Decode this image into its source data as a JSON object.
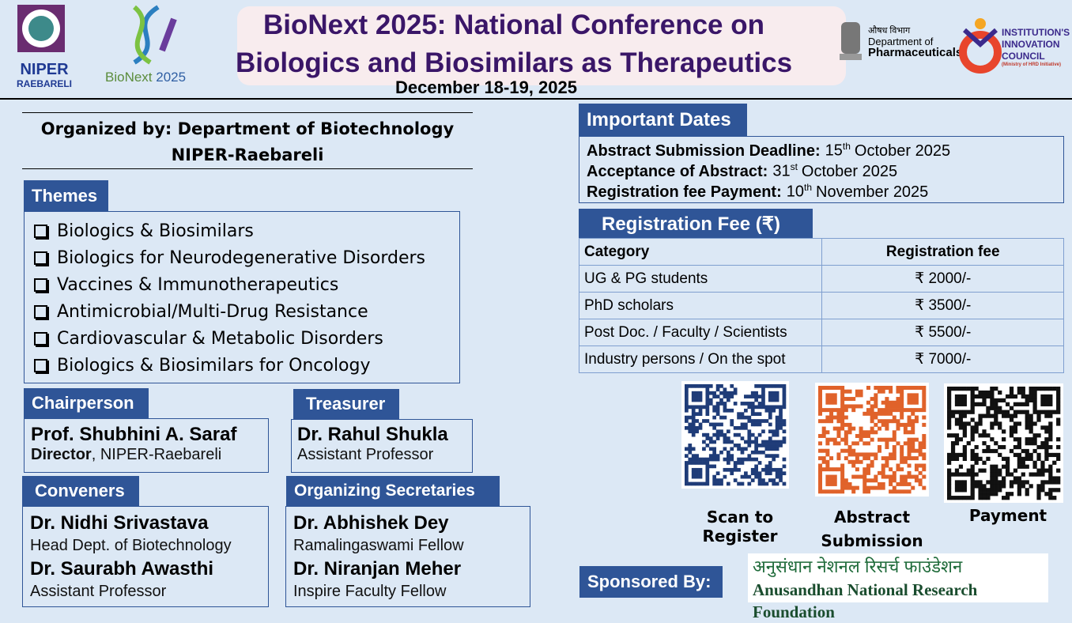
{
  "header": {
    "logos": {
      "niper": [
        "NIPER",
        "RAEBARELI"
      ],
      "bionext": [
        "BioNext",
        "2025"
      ],
      "dop": {
        "hindi": "औषध विभाग",
        "lines": [
          "Department of",
          "Pharmaceuticals"
        ]
      },
      "iic": {
        "lines": [
          "INSTITUTION'S",
          "INNOVATION",
          "COUNCIL"
        ],
        "note": "(Ministry of HRD Initiative)"
      }
    },
    "title": [
      "BioNext 2025: National Conference on",
      "Biologics and Biosimilars as Therapeutics"
    ],
    "date": "December 18-19, 2025"
  },
  "organizer": [
    "Organized by: Department of Biotechnology",
    "NIPER-Raebareli"
  ],
  "themes": {
    "heading": "Themes",
    "items": [
      "Biologics & Biosimilars",
      "Biologics for Neurodegenerative Disorders",
      "Vaccines & Immunotherapeutics",
      "Antimicrobial/Multi-Drug Resistance",
      "Cardiovascular & Metabolic Disorders",
      "Biologics & Biosimilars for Oncology"
    ]
  },
  "chairperson": {
    "heading": "Chairperson",
    "name": "Prof. Shubhini A. Saraf",
    "role": "Director",
    "affiliation": ", NIPER-Raebareli"
  },
  "treasurer": {
    "heading": "Treasurer",
    "name": "Dr. Rahul Shukla",
    "role": "Assistant Professor"
  },
  "conveners": {
    "heading": "Conveners",
    "people": [
      {
        "name": "Dr. Nidhi Srivastava",
        "role": "Head Dept. of Biotechnology"
      },
      {
        "name": "Dr. Saurabh Awasthi",
        "role": "Assistant Professor"
      }
    ]
  },
  "secretaries": {
    "heading": "Organizing Secretaries",
    "people": [
      {
        "name": "Dr. Abhishek Dey",
        "role": "Ramalingaswami Fellow"
      },
      {
        "name": "Dr. Niranjan Meher",
        "role": "Inspire Faculty Fellow"
      }
    ]
  },
  "dates": {
    "heading": "Important Dates",
    "items": [
      {
        "label": "Abstract Submission Deadline:",
        "day": "15",
        "suffix": "th",
        "month": "October 2025"
      },
      {
        "label": "Acceptance of Abstract:",
        "day": "31",
        "suffix": "st",
        "month": "October 2025"
      },
      {
        "label": "Registration fee Payment:",
        "day": "10",
        "suffix": "th",
        "month": "November 2025"
      }
    ]
  },
  "fees": {
    "heading": "Registration Fee (₹)",
    "columns": [
      "Category",
      "Registration fee"
    ],
    "rows": [
      [
        "UG & PG students",
        "₹ 2000/-"
      ],
      [
        "PhD scholars",
        "₹ 3500/-"
      ],
      [
        "Post Doc. / Faculty / Scientists",
        "₹ 5500/-"
      ],
      [
        "Industry persons / On the spot",
        "₹ 7000/-"
      ]
    ]
  },
  "qr": [
    "Scan to Register",
    "Abstract Submission",
    "Payment"
  ],
  "sponsor": {
    "heading": "Sponsored By:",
    "hindi": "अनुसंधान नेशनल रिसर्च फाउंडेशन",
    "english": "Anusandhan National Research Foundation"
  }
}
